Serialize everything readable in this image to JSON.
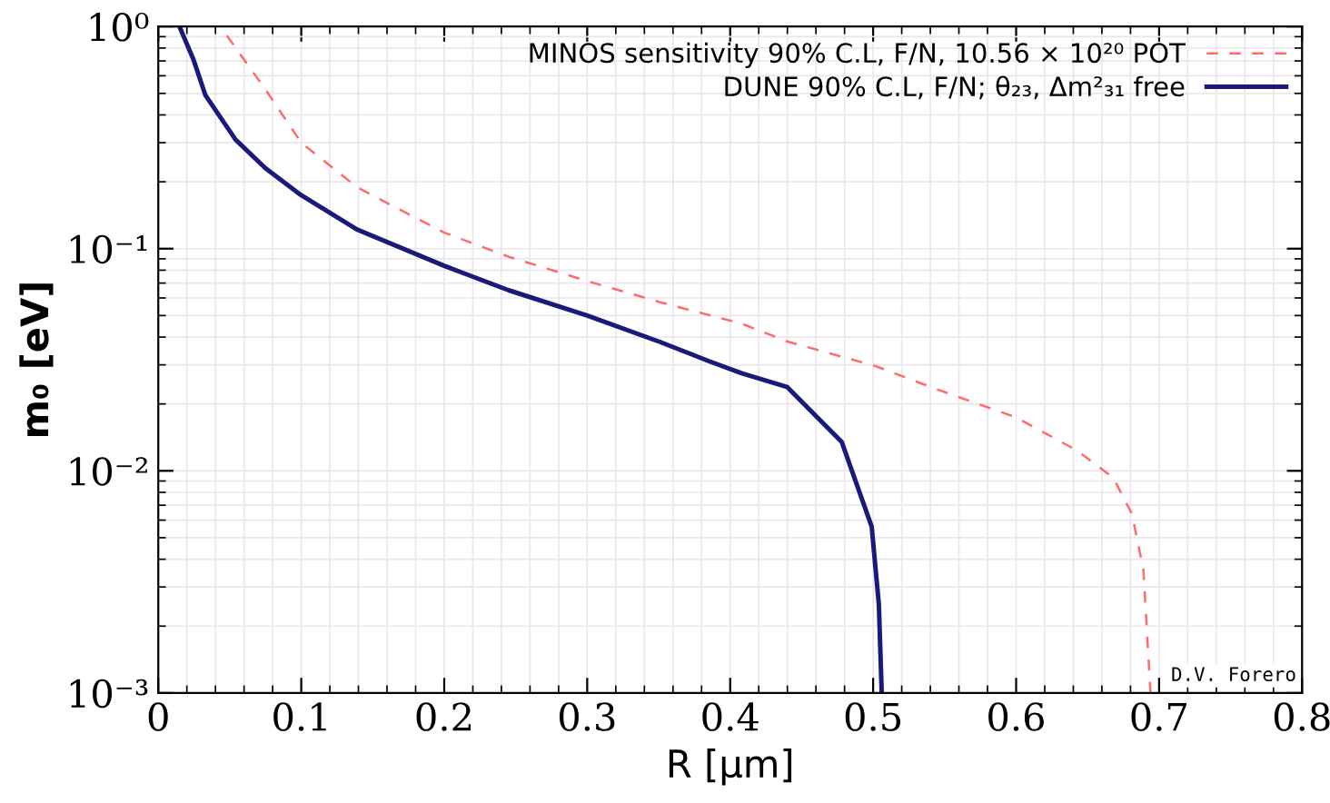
{
  "chart_data": {
    "type": "line",
    "xlabel": "R [μm]",
    "ylabel": "m₀ [eV]",
    "log": "y",
    "grid": true,
    "legend": "top right",
    "xlim": [
      0,
      0.8
    ],
    "ylim": [
      0.001,
      1
    ],
    "xticks": [
      0,
      0.1,
      0.2,
      0.3,
      0.4,
      0.5,
      0.6,
      0.7,
      0.8
    ],
    "yticks": [
      {
        "value": 0.001,
        "label": "10⁻³"
      },
      {
        "value": 0.01,
        "label": "10⁻²"
      },
      {
        "value": 0.1,
        "label": "10⁻¹"
      },
      {
        "value": 1,
        "label": "10⁰"
      }
    ],
    "annotations": [
      "D.V. Forero"
    ],
    "series": [
      {
        "name": "MINOS sensitivity 90% C.L, F/N, 10.56 × 10²⁰ POT",
        "color": "#ff6b6b",
        "line_style": "dashed",
        "x": [
          0.048,
          0.075,
          0.1,
          0.139,
          0.2,
          0.245,
          0.3,
          0.351,
          0.408,
          0.44,
          0.501,
          0.546,
          0.6,
          0.643,
          0.668,
          0.681,
          0.689,
          0.694
        ],
        "values": [
          0.91,
          0.52,
          0.3,
          0.189,
          0.118,
          0.092,
          0.0715,
          0.0574,
          0.046,
          0.0382,
          0.0297,
          0.0231,
          0.0174,
          0.0123,
          0.0093,
          0.0064,
          0.0036,
          0.001
        ]
      },
      {
        "name": "DUNE 90% C.L, F/N; θ₂₃, Δm²₃₁ free",
        "color": "#1a1a7a",
        "line_style": "solid",
        "x": [
          0.0148,
          0.0246,
          0.033,
          0.054,
          0.075,
          0.1,
          0.139,
          0.2,
          0.245,
          0.3,
          0.351,
          0.385,
          0.408,
          0.44,
          0.478,
          0.499,
          0.504,
          0.506
        ],
        "values": [
          1,
          0.71,
          0.49,
          0.31,
          0.23,
          0.174,
          0.122,
          0.0837,
          0.065,
          0.05,
          0.038,
          0.0312,
          0.0275,
          0.0238,
          0.0135,
          0.0056,
          0.0025,
          0.001
        ]
      }
    ]
  }
}
